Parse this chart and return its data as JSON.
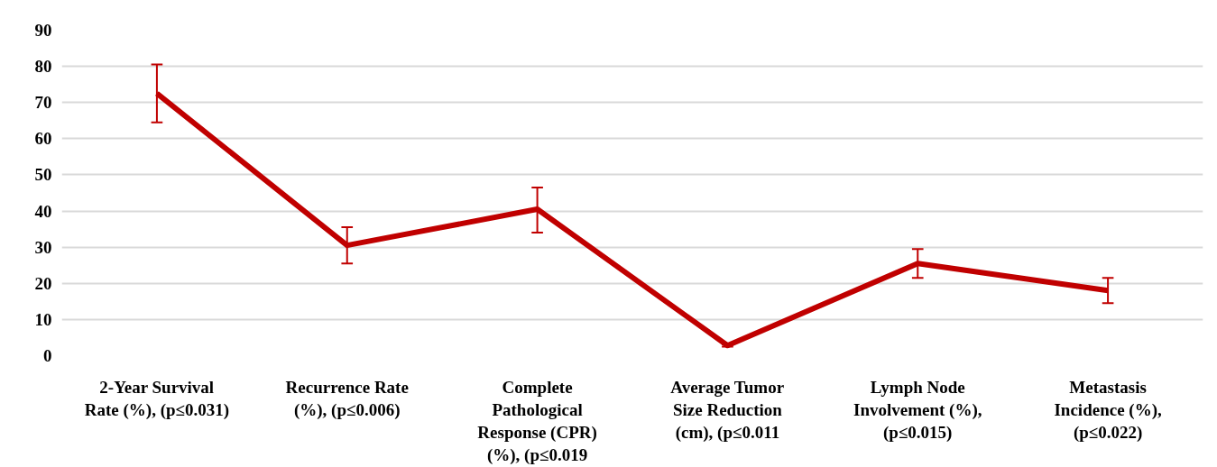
{
  "chart_data": {
    "type": "line",
    "categories": [
      "2-Year Survival\nRate (%), (p≤0.031)",
      "Recurrence Rate\n(%), (p≤0.006)",
      "Complete\nPathological\nResponse (CPR)\n(%), (p≤0.019",
      "Average Tumor\nSize Reduction\n(cm), (p≤0.011",
      "Lymph Node\nInvolvement (%),\n(p≤0.015)",
      "Metastasis\nIncidence (%),\n(p≤0.022)"
    ],
    "values": [
      72.5,
      30.5,
      40.5,
      2.8,
      25.5,
      18
    ],
    "errors": [
      [
        64.5,
        80.5
      ],
      [
        25.5,
        35.5
      ],
      [
        34,
        46.5
      ],
      [
        2.5,
        3.1
      ],
      [
        21.5,
        29.5
      ],
      [
        14.5,
        21.5
      ]
    ],
    "color": "#c00000",
    "ylim": [
      0,
      90
    ],
    "yticks": [
      0,
      10,
      20,
      30,
      40,
      50,
      60,
      70,
      80,
      90
    ],
    "grid": "y",
    "marker": "none"
  }
}
